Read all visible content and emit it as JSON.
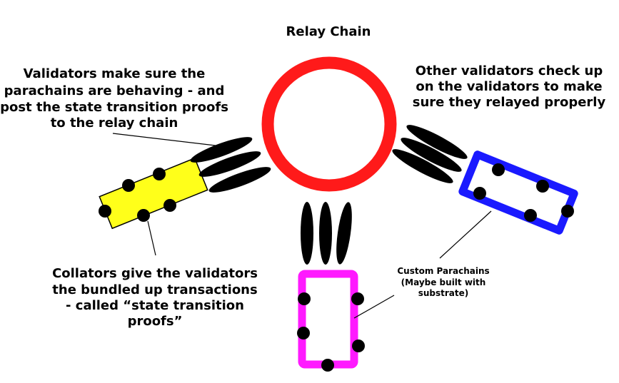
{
  "title": "Relay Chain",
  "annotations": {
    "validators": [
      "Validators make sure the",
      "parachains are behaving - and",
      "post the state transition proofs",
      "to the relay chain"
    ],
    "other_validators": [
      "Other validators check up",
      "on the validators to make",
      "sure they relayed properly"
    ],
    "collators": [
      "Collators give the validators",
      "the bundled up transactions",
      "- called “state transition",
      "proofs”"
    ],
    "custom_parachains": [
      "Custom Parachains",
      "(Maybe built with",
      "substrate)"
    ]
  },
  "colors": {
    "relay_chain": "#ff1a1a",
    "parachain_yellow": "#ffff1a",
    "parachain_blue": "#1a1aff",
    "parachain_magenta": "#ff1aff",
    "validator": "#000000",
    "collator": "#000000"
  }
}
